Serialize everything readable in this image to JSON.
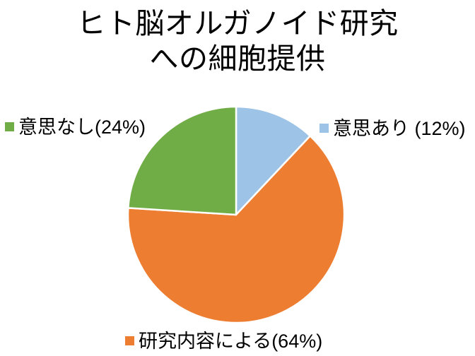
{
  "page": {
    "background": "#FFFFFF",
    "text_color": "#000000",
    "title": "ヒト脳オルガノイド研究\nへの細胞提供"
  },
  "chart_data": {
    "type": "pie",
    "title": "ヒト脳オルガノイド研究への細胞提供",
    "unit": "%",
    "total": 100,
    "start_angle_deg": 0,
    "direction": "clockwise",
    "separator_color": "#FFFFFF",
    "legend_position": "data labels placed around pie (top-right, bottom-center, top-left)",
    "slices": [
      {
        "label": "意思あり",
        "value": 12,
        "display": "意思あり (12%)",
        "color": "#9DC3E6",
        "label_position": "top-right"
      },
      {
        "label": "研究内容による",
        "value": 64,
        "display": "研究内容による(64%)",
        "color": "#ED7D31",
        "label_position": "bottom-center"
      },
      {
        "label": "意思なし",
        "value": 24,
        "display": "意思なし(24%)",
        "color": "#70AD47",
        "label_position": "top-left"
      }
    ]
  }
}
